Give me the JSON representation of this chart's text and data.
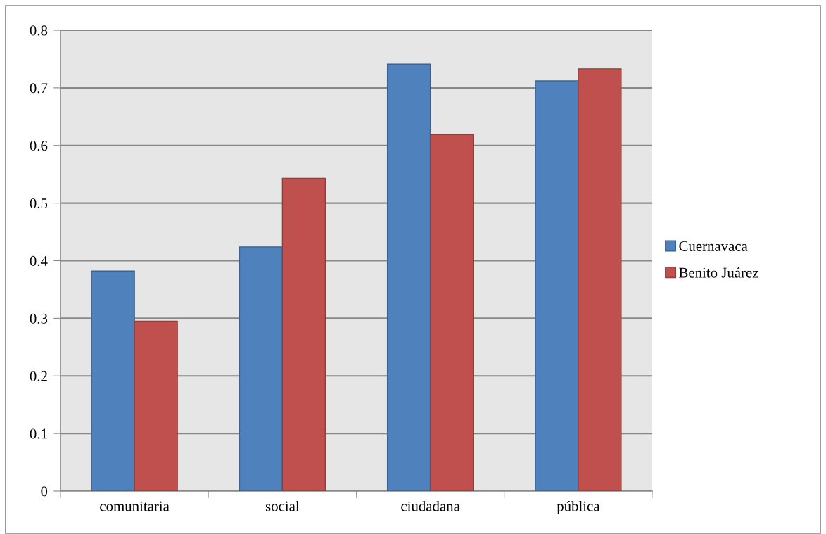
{
  "chart_data": {
    "type": "bar",
    "categories": [
      "comunitaria",
      "social",
      "ciudadana",
      "pública"
    ],
    "series": [
      {
        "name": "Cuernavaca",
        "color": "#4f81bd",
        "values": [
          0.382,
          0.424,
          0.741,
          0.712
        ]
      },
      {
        "name": "Benito Juárez",
        "color": "#c0504d",
        "values": [
          0.295,
          0.543,
          0.619,
          0.733
        ]
      }
    ],
    "ylim": [
      0,
      0.8
    ],
    "yticks": [
      0,
      0.1,
      0.2,
      0.3,
      0.4,
      0.5,
      0.6,
      0.7,
      0.8
    ],
    "grid": "y",
    "legend": "right"
  }
}
